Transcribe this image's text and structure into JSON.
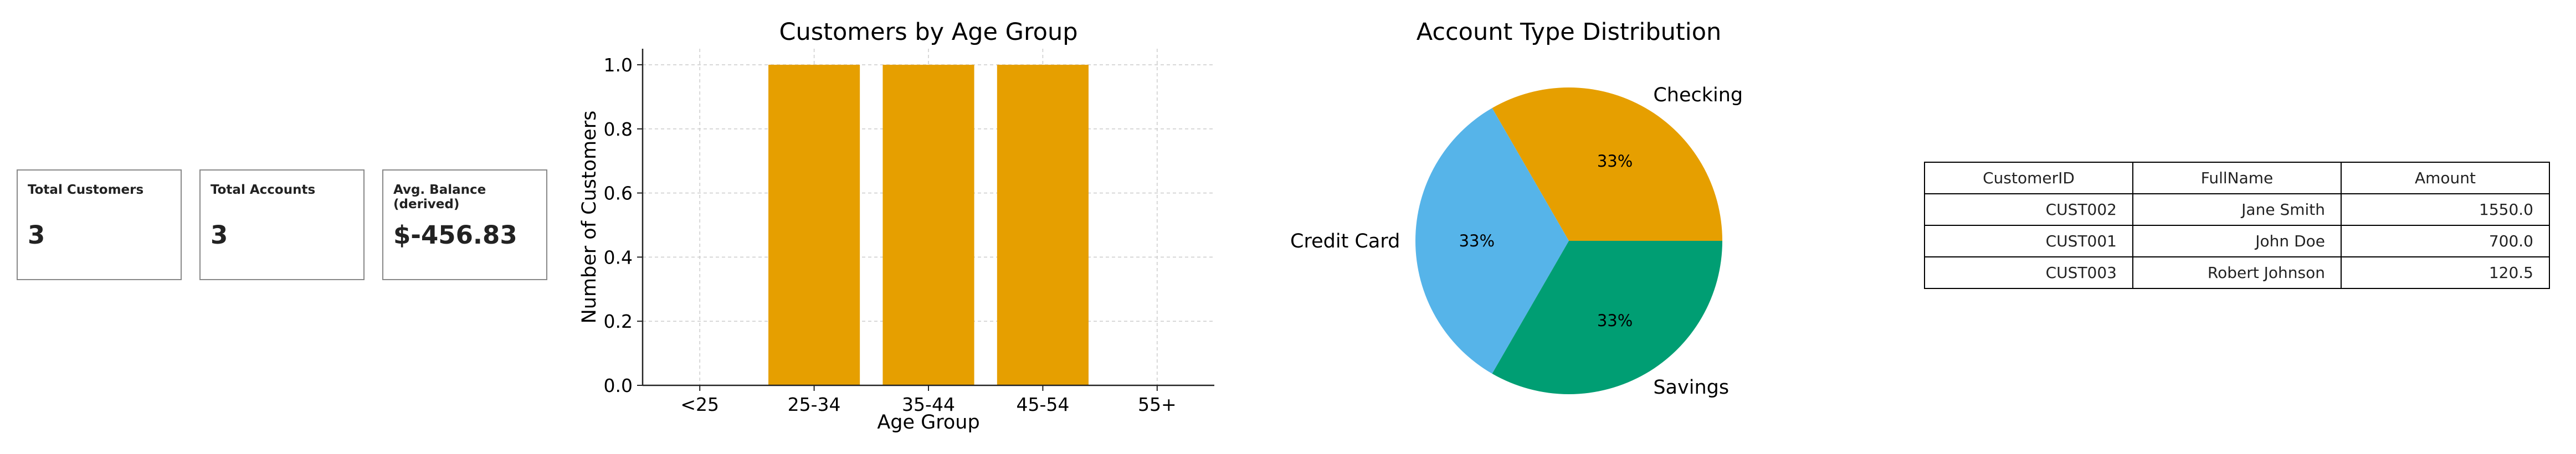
{
  "kpis": [
    {
      "label": "Total Customers",
      "value": "3"
    },
    {
      "label": "Total Accounts",
      "value": "3"
    },
    {
      "label": "Avg. Balance (derived)",
      "value": "$-456.83"
    }
  ],
  "colors": {
    "bar": "#E69F00",
    "checking": "#E69F00",
    "credit_card": "#56B4E9",
    "savings": "#009E73"
  },
  "chart_data": [
    {
      "type": "bar",
      "title": "Customers by Age Group",
      "xlabel": "Age Group",
      "ylabel": "Number of Customers",
      "categories": [
        "<25",
        "25-34",
        "35-44",
        "45-54",
        "55+"
      ],
      "values": [
        0,
        1,
        1,
        1,
        0
      ],
      "ylim": [
        0,
        1.05
      ],
      "yticks": [
        0.0,
        0.2,
        0.4,
        0.6,
        0.8,
        1.0
      ],
      "ytick_labels": [
        "0.0",
        "0.2",
        "0.4",
        "0.6",
        "0.8",
        "1.0"
      ],
      "grid": true
    },
    {
      "type": "pie",
      "title": "Account Type Distribution",
      "labels": [
        "Checking",
        "Credit Card",
        "Savings"
      ],
      "values": [
        1,
        1,
        1
      ],
      "pct_labels": [
        "33%",
        "33%",
        "33%"
      ]
    },
    {
      "type": "table",
      "columns": [
        "CustomerID",
        "FullName",
        "Amount"
      ],
      "rows": [
        [
          "CUST002",
          "Jane Smith",
          "1550.0"
        ],
        [
          "CUST001",
          "John Doe",
          "700.0"
        ],
        [
          "CUST003",
          "Robert Johnson",
          "120.5"
        ]
      ]
    }
  ]
}
